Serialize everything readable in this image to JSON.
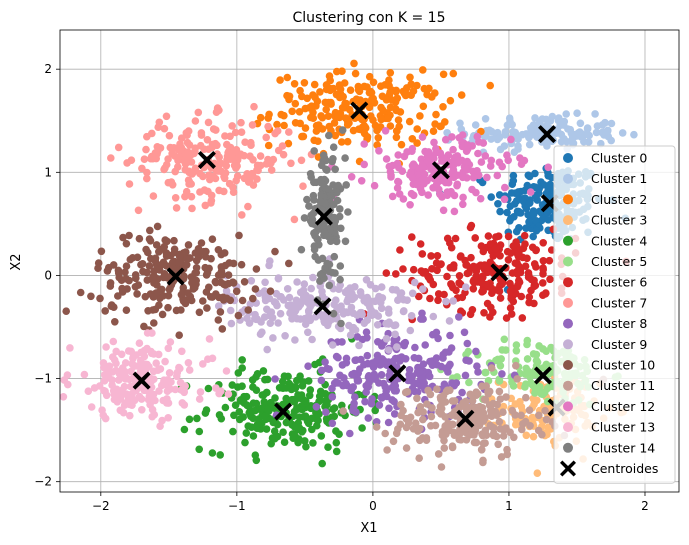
{
  "chart_data": {
    "type": "scatter",
    "title": "Clustering con K = 15",
    "xlabel": "X1",
    "ylabel": "X2",
    "xlim": [
      -2.3,
      2.25
    ],
    "ylim": [
      -2.1,
      2.38
    ],
    "xticks": [
      -2,
      -1,
      0,
      1,
      2
    ],
    "yticks": [
      -2,
      -1,
      0,
      1,
      2
    ],
    "xtick_labels": [
      "−2",
      "−1",
      "0",
      "1",
      "2"
    ],
    "ytick_labels": [
      "−2",
      "−1",
      "0",
      "1",
      "2"
    ],
    "grid": true,
    "legend_position": "right",
    "series": [
      {
        "name": "Cluster 0",
        "color": "#1f77b4",
        "center": [
          1.3,
          0.7
        ],
        "spread": [
          0.2,
          0.2
        ],
        "count": 190
      },
      {
        "name": "Cluster 1",
        "color": "#aec7e8",
        "center": [
          1.25,
          1.38
        ],
        "spread": [
          0.28,
          0.08
        ],
        "count": 150
      },
      {
        "name": "Cluster 2",
        "color": "#ff7f0e",
        "center": [
          -0.1,
          1.6
        ],
        "spread": [
          0.32,
          0.18
        ],
        "count": 230
      },
      {
        "name": "Cluster 3",
        "color": "#ffbb78",
        "center": [
          1.3,
          -1.3
        ],
        "spread": [
          0.18,
          0.16
        ],
        "count": 120
      },
      {
        "name": "Cluster 4",
        "color": "#2ca02c",
        "center": [
          -0.65,
          -1.3
        ],
        "spread": [
          0.3,
          0.2
        ],
        "count": 230
      },
      {
        "name": "Cluster 5",
        "color": "#98df8a",
        "center": [
          1.25,
          -0.95
        ],
        "spread": [
          0.24,
          0.16
        ],
        "count": 130
      },
      {
        "name": "Cluster 6",
        "color": "#d62728",
        "center": [
          0.9,
          0.05
        ],
        "spread": [
          0.3,
          0.2
        ],
        "count": 220
      },
      {
        "name": "Cluster 7",
        "color": "#ff9896",
        "center": [
          -1.2,
          1.12
        ],
        "spread": [
          0.3,
          0.2
        ],
        "count": 220
      },
      {
        "name": "Cluster 8",
        "color": "#9467bd",
        "center": [
          0.18,
          -0.95
        ],
        "spread": [
          0.3,
          0.22
        ],
        "count": 230
      },
      {
        "name": "Cluster 9",
        "color": "#c5b0d5",
        "center": [
          -0.35,
          -0.3
        ],
        "spread": [
          0.36,
          0.16
        ],
        "count": 230
      },
      {
        "name": "Cluster 10",
        "color": "#8c564b",
        "center": [
          -1.45,
          0.0
        ],
        "spread": [
          0.3,
          0.2
        ],
        "count": 230
      },
      {
        "name": "Cluster 11",
        "color": "#c49c94",
        "center": [
          0.68,
          -1.4
        ],
        "spread": [
          0.28,
          0.18
        ],
        "count": 210
      },
      {
        "name": "Cluster 12",
        "color": "#e377c2",
        "center": [
          0.5,
          1.02
        ],
        "spread": [
          0.26,
          0.16
        ],
        "count": 190
      },
      {
        "name": "Cluster 13",
        "color": "#f7b6d2",
        "center": [
          -1.7,
          -1.02
        ],
        "spread": [
          0.26,
          0.18
        ],
        "count": 190
      },
      {
        "name": "Cluster 14",
        "color": "#7f7f7f",
        "center": [
          -0.35,
          0.56
        ],
        "spread": [
          0.07,
          0.3
        ],
        "count": 140
      }
    ],
    "centroids": {
      "name": "Centroides",
      "color": "#000000",
      "points": [
        [
          1.3,
          0.7
        ],
        [
          1.28,
          1.37
        ],
        [
          -0.1,
          1.6
        ],
        [
          1.35,
          -1.28
        ],
        [
          -0.66,
          -1.32
        ],
        [
          1.25,
          -0.97
        ],
        [
          0.93,
          0.03
        ],
        [
          -1.22,
          1.12
        ],
        [
          0.18,
          -0.95
        ],
        [
          -0.37,
          -0.3
        ],
        [
          -1.45,
          -0.01
        ],
        [
          0.68,
          -1.39
        ],
        [
          0.5,
          1.02
        ],
        [
          -1.7,
          -1.02
        ],
        [
          -0.36,
          0.57
        ]
      ]
    }
  }
}
